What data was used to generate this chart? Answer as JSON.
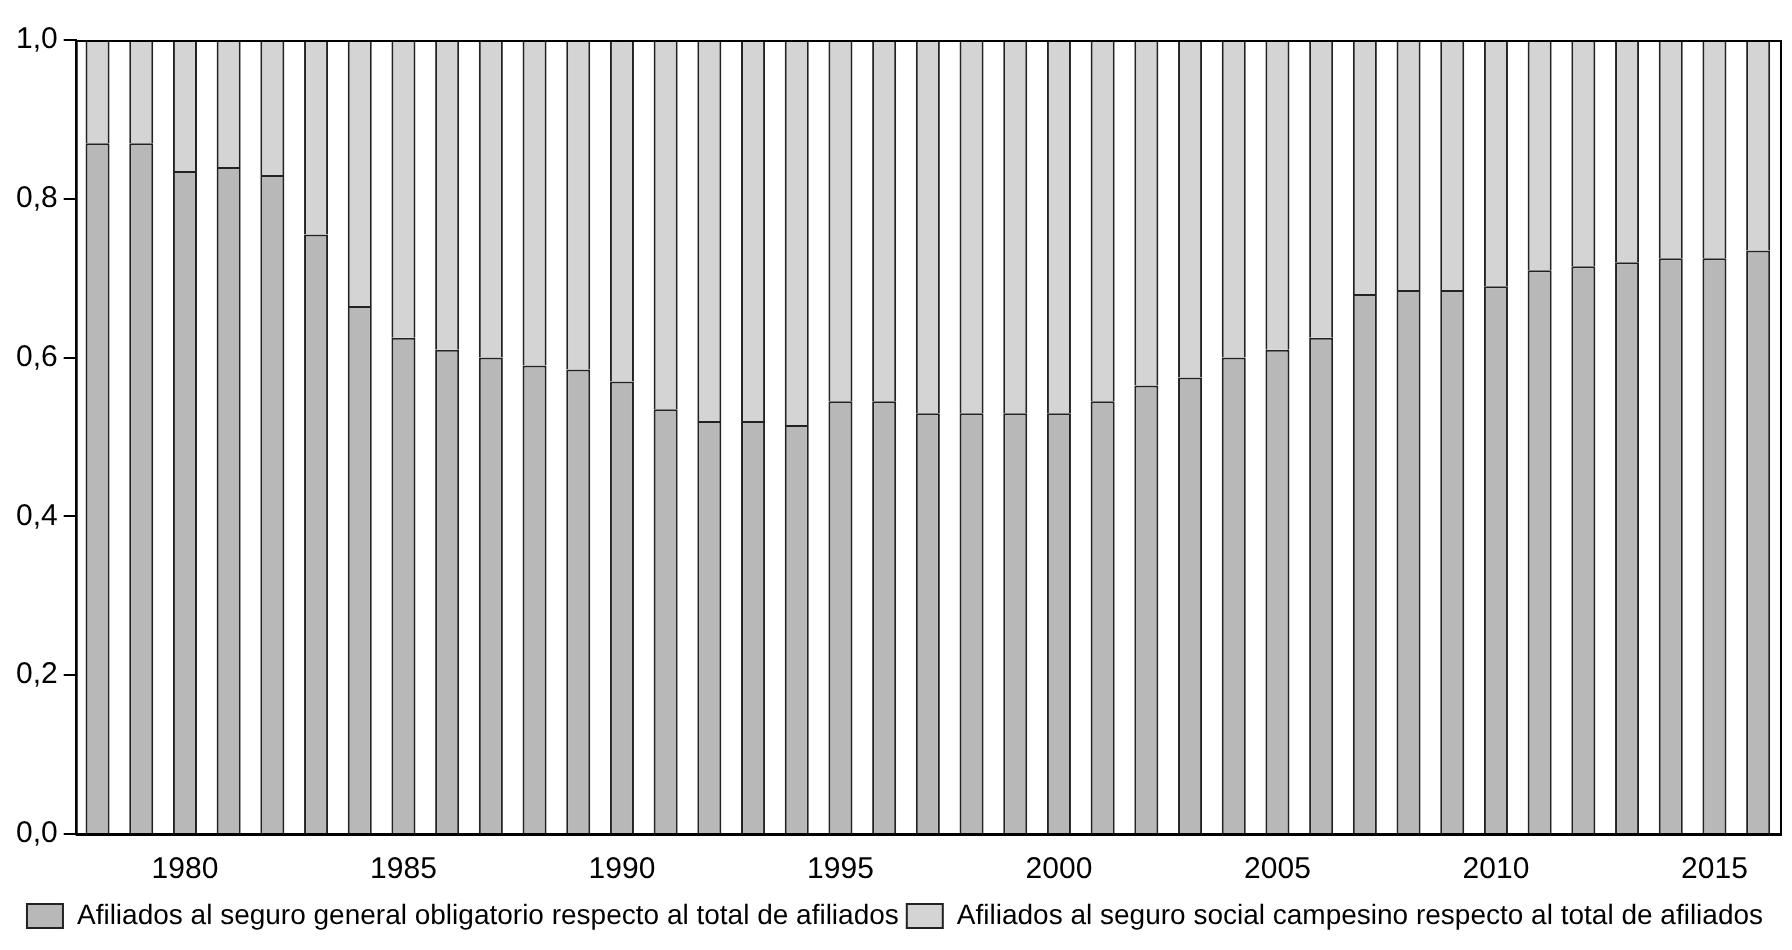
{
  "chart_data": {
    "type": "bar",
    "stacked": true,
    "categories": [
      null,
      null,
      "1980",
      null,
      null,
      null,
      null,
      "1985",
      null,
      null,
      null,
      null,
      "1990",
      null,
      null,
      null,
      null,
      "1995",
      null,
      null,
      null,
      null,
      "2000",
      null,
      null,
      null,
      null,
      "2005",
      null,
      null,
      null,
      null,
      "2010",
      null,
      null,
      null,
      null,
      "2015",
      null
    ],
    "series": [
      {
        "name": "Afiliados al seguro general obligatorio respecto al total de afiliados",
        "color": "#b8b8b8",
        "values": [
          0.87,
          0.87,
          0.835,
          0.84,
          0.83,
          0.755,
          0.665,
          0.625,
          0.61,
          0.6,
          0.59,
          0.585,
          0.57,
          0.535,
          0.52,
          0.52,
          0.515,
          0.545,
          0.545,
          0.53,
          0.53,
          0.53,
          0.53,
          0.545,
          0.565,
          0.575,
          0.6,
          0.61,
          0.625,
          0.68,
          0.685,
          0.685,
          0.69,
          0.71,
          0.715,
          0.72,
          0.725,
          0.725,
          0.735
        ]
      },
      {
        "name": "Afiliados al seguro social campesino respecto al total de afiliados",
        "color": "#d4d4d4",
        "values": [
          0.13,
          0.13,
          0.165,
          0.16,
          0.17,
          0.245,
          0.335,
          0.375,
          0.39,
          0.4,
          0.41,
          0.415,
          0.43,
          0.465,
          0.48,
          0.48,
          0.485,
          0.455,
          0.455,
          0.47,
          0.47,
          0.47,
          0.47,
          0.455,
          0.435,
          0.425,
          0.4,
          0.39,
          0.375,
          0.32,
          0.315,
          0.315,
          0.31,
          0.29,
          0.285,
          0.28,
          0.275,
          0.275,
          0.265
        ]
      }
    ],
    "ylim": [
      0,
      1
    ],
    "yticks": [
      {
        "value": 0,
        "label": "0,0"
      },
      {
        "value": 0.2,
        "label": "0,2"
      },
      {
        "value": 0.4,
        "label": "0,4"
      },
      {
        "value": 0.6,
        "label": "0,6"
      },
      {
        "value": 0.8,
        "label": "0,8"
      },
      {
        "value": 1,
        "label": "1,0"
      }
    ],
    "grid": false,
    "legend": "bottom"
  }
}
